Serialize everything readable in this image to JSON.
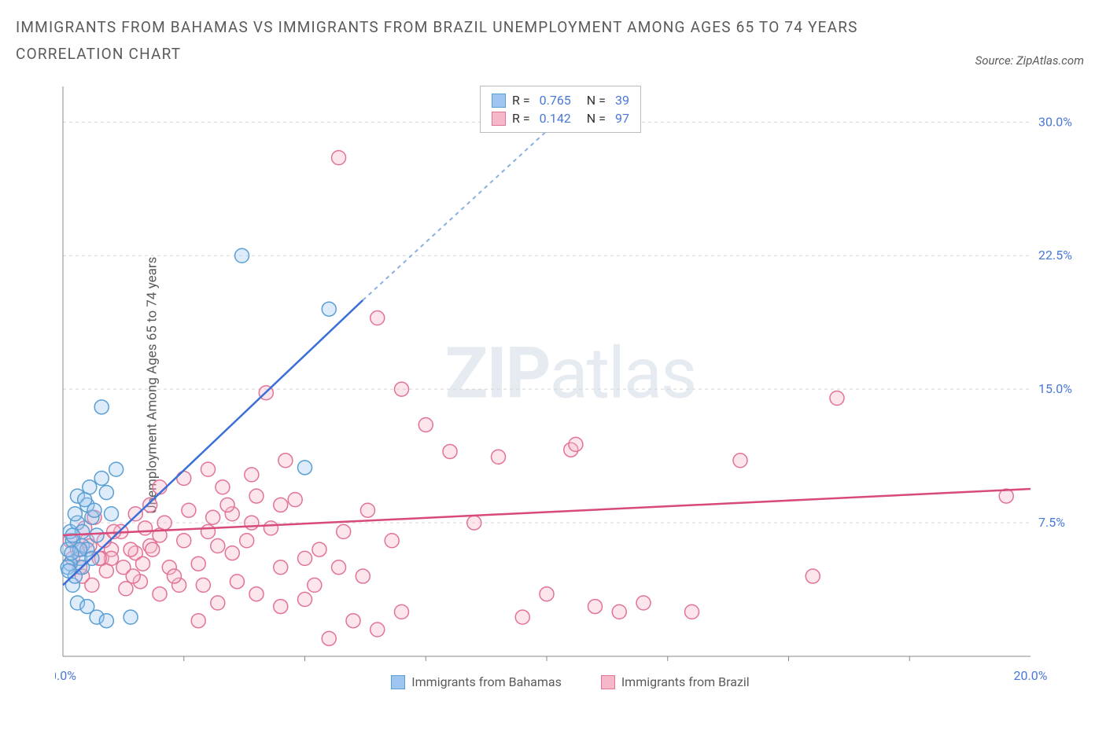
{
  "header": {
    "title": "IMMIGRANTS FROM BAHAMAS VS IMMIGRANTS FROM BRAZIL UNEMPLOYMENT AMONG AGES 65 TO 74 YEARS CORRELATION CHART",
    "source": "Source: ZipAtlas.com"
  },
  "chart": {
    "type": "scatter",
    "y_label": "Unemployment Among Ages 65 to 74 years",
    "watermark_bold": "ZIP",
    "watermark_light": "atlas",
    "background_color": "#ffffff",
    "grid_color": "#d5d5d5",
    "axis_color": "#888888",
    "tick_label_color": "#4978d8",
    "xlim": [
      0,
      20
    ],
    "ylim": [
      0,
      32
    ],
    "x_ticks": [
      0,
      20
    ],
    "x_tick_labels": [
      "0.0%",
      "20.0%"
    ],
    "y_ticks": [
      7.5,
      15.0,
      22.5,
      30.0
    ],
    "y_tick_labels": [
      "7.5%",
      "15.0%",
      "22.5%",
      "30.0%"
    ],
    "grid_y": [
      7.5,
      15.0,
      22.5,
      30.0
    ],
    "tick_marks_x": [
      2.5,
      5.0,
      7.5,
      10.0,
      12.5,
      15.0,
      17.5
    ],
    "series": [
      {
        "name": "Immigrants from Bahamas",
        "color_fill": "#9ec5f0",
        "color_stroke": "#5a9fd4",
        "R": "0.765",
        "N": "39",
        "trend": {
          "x1": 0,
          "y1": 4.0,
          "x2": 6.2,
          "y2": 20.0
        },
        "trend_extend": {
          "x1": 6.2,
          "y1": 20.0,
          "x2": 11.0,
          "y2": 32.0
        },
        "points": [
          [
            0.1,
            6.0
          ],
          [
            0.2,
            6.5
          ],
          [
            0.15,
            7.0
          ],
          [
            0.3,
            7.5
          ],
          [
            0.25,
            8.0
          ],
          [
            0.4,
            6.2
          ],
          [
            0.35,
            5.5
          ],
          [
            0.2,
            4.0
          ],
          [
            0.3,
            9.0
          ],
          [
            0.5,
            8.5
          ],
          [
            0.6,
            7.8
          ],
          [
            0.7,
            6.8
          ],
          [
            0.4,
            7.0
          ],
          [
            0.5,
            6.0
          ],
          [
            0.8,
            10.0
          ],
          [
            0.9,
            9.2
          ],
          [
            1.0,
            8.0
          ],
          [
            1.1,
            10.5
          ],
          [
            0.3,
            3.0
          ],
          [
            0.5,
            2.8
          ],
          [
            0.7,
            2.2
          ],
          [
            0.9,
            2.0
          ],
          [
            1.4,
            2.2
          ],
          [
            0.8,
            14.0
          ],
          [
            0.4,
            5.0
          ],
          [
            0.6,
            5.5
          ],
          [
            0.2,
            6.8
          ],
          [
            0.15,
            5.2
          ],
          [
            0.45,
            8.8
          ],
          [
            0.55,
            9.5
          ],
          [
            0.65,
            8.2
          ],
          [
            0.35,
            6.0
          ],
          [
            3.7,
            22.5
          ],
          [
            5.5,
            19.5
          ],
          [
            5.0,
            10.6
          ],
          [
            0.1,
            5.0
          ],
          [
            0.25,
            4.5
          ],
          [
            0.12,
            4.8
          ],
          [
            0.18,
            5.8
          ]
        ]
      },
      {
        "name": "Immigrants from Brazil",
        "color_fill": "#f5b8c9",
        "color_stroke": "#e27396",
        "R": "0.142",
        "N": "97",
        "trend": {
          "x1": 0,
          "y1": 6.8,
          "x2": 20,
          "y2": 9.4
        },
        "points": [
          [
            0.3,
            6.0
          ],
          [
            0.5,
            6.5
          ],
          [
            0.8,
            5.5
          ],
          [
            1.0,
            6.0
          ],
          [
            1.2,
            7.0
          ],
          [
            1.5,
            5.8
          ],
          [
            1.8,
            6.2
          ],
          [
            2.0,
            6.8
          ],
          [
            2.2,
            5.0
          ],
          [
            2.5,
            6.5
          ],
          [
            2.8,
            5.2
          ],
          [
            3.0,
            7.0
          ],
          [
            3.2,
            6.2
          ],
          [
            3.5,
            5.8
          ],
          [
            0.4,
            4.5
          ],
          [
            0.6,
            4.0
          ],
          [
            0.9,
            4.8
          ],
          [
            1.3,
            3.8
          ],
          [
            1.6,
            4.2
          ],
          [
            2.0,
            3.5
          ],
          [
            2.4,
            4.0
          ],
          [
            2.8,
            2.0
          ],
          [
            3.2,
            3.0
          ],
          [
            3.6,
            4.2
          ],
          [
            4.0,
            3.5
          ],
          [
            4.5,
            2.8
          ],
          [
            5.0,
            3.2
          ],
          [
            5.5,
            1.0
          ],
          [
            6.0,
            2.0
          ],
          [
            6.5,
            1.5
          ],
          [
            7.0,
            2.5
          ],
          [
            3.0,
            10.5
          ],
          [
            3.5,
            8.0
          ],
          [
            4.0,
            9.0
          ],
          [
            4.5,
            8.5
          ],
          [
            2.0,
            9.5
          ],
          [
            2.5,
            10.0
          ],
          [
            1.5,
            8.0
          ],
          [
            1.8,
            8.5
          ],
          [
            4.2,
            14.8
          ],
          [
            7.0,
            15.0
          ],
          [
            7.5,
            13.0
          ],
          [
            8.0,
            11.5
          ],
          [
            8.5,
            7.5
          ],
          [
            9.0,
            11.2
          ],
          [
            10.5,
            11.6
          ],
          [
            10.6,
            11.9
          ],
          [
            11.0,
            2.8
          ],
          [
            11.5,
            2.5
          ],
          [
            12.0,
            3.0
          ],
          [
            10.0,
            3.5
          ],
          [
            9.5,
            2.2
          ],
          [
            13.0,
            2.5
          ],
          [
            6.5,
            19.0
          ],
          [
            5.7,
            28.0
          ],
          [
            1.0,
            5.5
          ],
          [
            1.4,
            6.0
          ],
          [
            1.7,
            7.2
          ],
          [
            2.1,
            7.5
          ],
          [
            2.6,
            8.2
          ],
          [
            3.1,
            7.8
          ],
          [
            3.8,
            6.5
          ],
          [
            4.3,
            7.2
          ],
          [
            4.8,
            8.8
          ],
          [
            5.3,
            6.0
          ],
          [
            5.8,
            7.0
          ],
          [
            6.3,
            8.2
          ],
          [
            6.8,
            6.5
          ],
          [
            0.2,
            5.5
          ],
          [
            0.35,
            5.0
          ],
          [
            0.55,
            6.2
          ],
          [
            0.75,
            5.5
          ],
          [
            14.0,
            11.0
          ],
          [
            15.5,
            4.5
          ],
          [
            16.0,
            14.5
          ],
          [
            19.5,
            9.0
          ],
          [
            4.5,
            5.0
          ],
          [
            5.0,
            5.5
          ],
          [
            2.3,
            4.5
          ],
          [
            2.9,
            4.0
          ],
          [
            3.3,
            9.5
          ],
          [
            3.9,
            10.2
          ],
          [
            4.6,
            11.0
          ],
          [
            0.15,
            6.5
          ],
          [
            0.45,
            7.2
          ],
          [
            0.65,
            7.8
          ],
          [
            0.85,
            6.5
          ],
          [
            1.05,
            7.0
          ],
          [
            1.25,
            5.0
          ],
          [
            1.45,
            4.5
          ],
          [
            1.65,
            5.2
          ],
          [
            1.85,
            6.0
          ],
          [
            5.2,
            4.0
          ],
          [
            5.7,
            5.0
          ],
          [
            6.2,
            4.5
          ],
          [
            3.4,
            8.5
          ],
          [
            3.9,
            7.5
          ]
        ]
      }
    ]
  }
}
